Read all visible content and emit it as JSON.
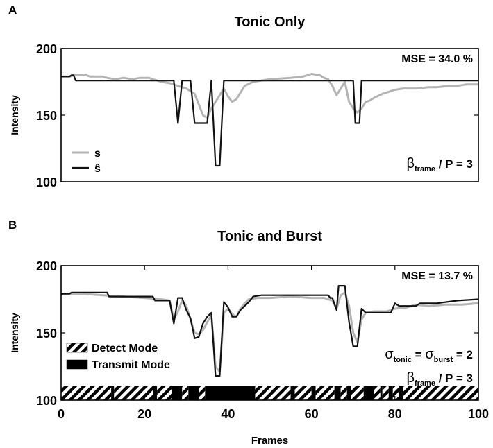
{
  "xlabel": "Frames",
  "colors": {
    "s": "#b4b4b4",
    "s_hat": "#111111",
    "axis": "#000000"
  },
  "chart_data": [
    {
      "panel_label": "A",
      "title": "Tonic Only",
      "type": "line",
      "ylabel": "Intensity",
      "xlabel": "",
      "xlim": [
        0,
        100
      ],
      "ylim": [
        100,
        200
      ],
      "yticks": [
        100,
        150,
        200
      ],
      "xticks_visible": false,
      "annotation_mse": "MSE = 34.0 %",
      "annotation_lines": [
        {
          "sym": "β",
          "sub": "frame",
          "rest": " / P = 3"
        }
      ],
      "legend": [
        {
          "label": "s",
          "color": "#b4b4b4"
        },
        {
          "label": "ŝ",
          "color": "#111111"
        }
      ],
      "series": [
        {
          "name": "s",
          "color": "#b4b4b4",
          "points": [
            [
              0,
              179
            ],
            [
              2,
              179
            ],
            [
              3,
              180
            ],
            [
              6,
              180
            ],
            [
              7,
              179
            ],
            [
              10,
              179
            ],
            [
              11,
              178
            ],
            [
              13,
              177
            ],
            [
              15,
              178
            ],
            [
              17,
              177
            ],
            [
              19,
              178
            ],
            [
              21,
              178
            ],
            [
              22,
              177
            ],
            [
              24,
              175
            ],
            [
              26,
              174
            ],
            [
              27,
              173
            ],
            [
              28,
              172
            ],
            [
              29,
              171
            ],
            [
              30,
              170
            ],
            [
              31,
              168
            ],
            [
              32,
              166
            ],
            [
              33,
              158
            ],
            [
              34,
              150
            ],
            [
              35,
              148
            ],
            [
              36,
              155
            ],
            [
              37,
              160
            ],
            [
              38,
              165
            ],
            [
              39,
              170
            ],
            [
              40,
              164
            ],
            [
              41,
              160
            ],
            [
              42,
              162
            ],
            [
              43,
              167
            ],
            [
              44,
              172
            ],
            [
              46,
              175
            ],
            [
              48,
              176
            ],
            [
              50,
              177
            ],
            [
              55,
              178
            ],
            [
              58,
              179
            ],
            [
              60,
              181
            ],
            [
              62,
              180
            ],
            [
              63,
              178
            ],
            [
              64,
              177
            ],
            [
              65,
              172
            ],
            [
              66,
              165
            ],
            [
              67,
              170
            ],
            [
              68,
              175
            ],
            [
              69,
              160
            ],
            [
              70,
              155
            ],
            [
              71,
              152
            ],
            [
              72,
              155
            ],
            [
              73,
              160
            ],
            [
              74,
              161
            ],
            [
              75,
              163
            ],
            [
              77,
              166
            ],
            [
              79,
              168
            ],
            [
              80,
              169
            ],
            [
              82,
              170
            ],
            [
              85,
              170
            ],
            [
              88,
              171
            ],
            [
              90,
              171
            ],
            [
              93,
              172
            ],
            [
              95,
              172
            ],
            [
              97,
              173
            ],
            [
              100,
              173
            ]
          ]
        },
        {
          "name": "ŝ",
          "color": "#111111",
          "points": [
            [
              0,
              179
            ],
            [
              2,
              179
            ],
            [
              2.5,
              180
            ],
            [
              3,
              180
            ],
            [
              3.5,
              176
            ],
            [
              26,
              176
            ],
            [
              27,
              176
            ],
            [
              28,
              144
            ],
            [
              29,
              176
            ],
            [
              31,
              176
            ],
            [
              32,
              144
            ],
            [
              35,
              144
            ],
            [
              36,
              176
            ],
            [
              37,
              112
            ],
            [
              38,
              112
            ],
            [
              39,
              176
            ],
            [
              70,
              176
            ],
            [
              70.5,
              144
            ],
            [
              71.5,
              144
            ],
            [
              72,
              176
            ],
            [
              100,
              176
            ]
          ]
        }
      ],
      "bands": []
    },
    {
      "panel_label": "B",
      "title": "Tonic and Burst",
      "type": "line",
      "ylabel": "Intensity",
      "xlabel": "Frames",
      "xlim": [
        0,
        100
      ],
      "ylim": [
        100,
        200
      ],
      "yticks": [
        100,
        150,
        200
      ],
      "xticks": [
        0,
        20,
        40,
        60,
        80,
        100
      ],
      "xticks_visible": true,
      "annotation_mse": "MSE = 13.7 %",
      "annotation_lines": [
        {
          "sym": "σ",
          "sub": "tonic",
          "mid": " = ",
          "sym2": "σ",
          "sub2": "burst",
          "rest": " = 2"
        },
        {
          "sym": "β",
          "sub": "frame",
          "rest": " / P = 3"
        }
      ],
      "legend": [
        {
          "label": "Detect Mode",
          "style": "hatched"
        },
        {
          "label": "Transmit Mode",
          "style": "solid"
        }
      ],
      "series": [
        {
          "name": "s",
          "color": "#b4b4b4",
          "points": [
            [
              0,
              179
            ],
            [
              5,
              179
            ],
            [
              10,
              178
            ],
            [
              15,
              177
            ],
            [
              20,
              176
            ],
            [
              24,
              175
            ],
            [
              26,
              174
            ],
            [
              27,
              160
            ],
            [
              28,
              166
            ],
            [
              29,
              174
            ],
            [
              30,
              170
            ],
            [
              31,
              160
            ],
            [
              32,
              150
            ],
            [
              33,
              149
            ],
            [
              34,
              152
            ],
            [
              35,
              158
            ],
            [
              36,
              163
            ],
            [
              37,
              125
            ],
            [
              38,
              121
            ],
            [
              39,
              165
            ],
            [
              40,
              168
            ],
            [
              41,
              164
            ],
            [
              42,
              162
            ],
            [
              43,
              168
            ],
            [
              44,
              172
            ],
            [
              45,
              175
            ],
            [
              47,
              176
            ],
            [
              50,
              176
            ],
            [
              55,
              177
            ],
            [
              60,
              176
            ],
            [
              63,
              176
            ],
            [
              65,
              174
            ],
            [
              66,
              168
            ],
            [
              67,
              178
            ],
            [
              68,
              180
            ],
            [
              69,
              170
            ],
            [
              70,
              150
            ],
            [
              71,
              143
            ],
            [
              72,
              160
            ],
            [
              73,
              165
            ],
            [
              75,
              166
            ],
            [
              78,
              166
            ],
            [
              80,
              168
            ],
            [
              83,
              169
            ],
            [
              85,
              171
            ],
            [
              88,
              170
            ],
            [
              92,
              171
            ],
            [
              96,
              171
            ],
            [
              100,
              172
            ]
          ]
        },
        {
          "name": "ŝ",
          "color": "#111111",
          "points": [
            [
              0,
              179
            ],
            [
              2,
              179
            ],
            [
              2.5,
              180
            ],
            [
              6,
              180
            ],
            [
              11,
              180
            ],
            [
              11.5,
              177
            ],
            [
              22,
              177
            ],
            [
              22.5,
              174
            ],
            [
              26,
              174
            ],
            [
              27,
              157
            ],
            [
              28,
              176
            ],
            [
              29,
              176
            ],
            [
              30,
              167
            ],
            [
              31,
              161
            ],
            [
              32,
              146
            ],
            [
              33,
              147
            ],
            [
              34,
              157
            ],
            [
              35,
              162
            ],
            [
              36,
              165
            ],
            [
              37,
              118
            ],
            [
              38,
              118
            ],
            [
              39,
              173
            ],
            [
              40,
              169
            ],
            [
              41,
              162
            ],
            [
              42,
              162
            ],
            [
              43,
              167
            ],
            [
              44,
              170
            ],
            [
              45,
              173
            ],
            [
              46,
              177
            ],
            [
              48,
              178
            ],
            [
              60,
              178
            ],
            [
              64,
              178
            ],
            [
              64.5,
              176
            ],
            [
              65,
              176
            ],
            [
              66,
              167
            ],
            [
              66.5,
              185
            ],
            [
              68,
              185
            ],
            [
              69,
              158
            ],
            [
              70,
              140
            ],
            [
              71,
              140
            ],
            [
              72,
              168
            ],
            [
              73,
              165
            ],
            [
              79,
              165
            ],
            [
              80,
              172
            ],
            [
              81,
              170
            ],
            [
              82,
              170
            ],
            [
              85,
              170
            ],
            [
              86,
              172
            ],
            [
              90,
              172
            ],
            [
              95,
              174
            ],
            [
              100,
              175
            ]
          ]
        }
      ],
      "bands": [
        {
          "start": 0,
          "end": 12,
          "mode": "Detect Mode"
        },
        {
          "start": 12,
          "end": 12.7,
          "mode": "Transmit Mode"
        },
        {
          "start": 12.7,
          "end": 22,
          "mode": "Detect Mode"
        },
        {
          "start": 22,
          "end": 23,
          "mode": "Transmit Mode"
        },
        {
          "start": 23,
          "end": 26.5,
          "mode": "Detect Mode"
        },
        {
          "start": 26.5,
          "end": 29,
          "mode": "Transmit Mode"
        },
        {
          "start": 29,
          "end": 30.5,
          "mode": "Detect Mode"
        },
        {
          "start": 30.5,
          "end": 33,
          "mode": "Transmit Mode"
        },
        {
          "start": 33,
          "end": 34.5,
          "mode": "Detect Mode"
        },
        {
          "start": 34.5,
          "end": 46.5,
          "mode": "Transmit Mode"
        },
        {
          "start": 46.5,
          "end": 55,
          "mode": "Detect Mode"
        },
        {
          "start": 55,
          "end": 56,
          "mode": "Transmit Mode"
        },
        {
          "start": 56,
          "end": 60,
          "mode": "Detect Mode"
        },
        {
          "start": 60,
          "end": 61,
          "mode": "Transmit Mode"
        },
        {
          "start": 61,
          "end": 65.5,
          "mode": "Detect Mode"
        },
        {
          "start": 65.5,
          "end": 67,
          "mode": "Transmit Mode"
        },
        {
          "start": 67,
          "end": 68.5,
          "mode": "Detect Mode"
        },
        {
          "start": 68.5,
          "end": 69.5,
          "mode": "Transmit Mode"
        },
        {
          "start": 69.5,
          "end": 72.5,
          "mode": "Detect Mode"
        },
        {
          "start": 72.5,
          "end": 75,
          "mode": "Transmit Mode"
        },
        {
          "start": 75,
          "end": 76.5,
          "mode": "Detect Mode"
        },
        {
          "start": 76.5,
          "end": 77,
          "mode": "Transmit Mode"
        },
        {
          "start": 77,
          "end": 78.5,
          "mode": "Detect Mode"
        },
        {
          "start": 78.5,
          "end": 79.5,
          "mode": "Transmit Mode"
        },
        {
          "start": 79.5,
          "end": 81,
          "mode": "Detect Mode"
        },
        {
          "start": 81,
          "end": 82,
          "mode": "Transmit Mode"
        },
        {
          "start": 82,
          "end": 100,
          "mode": "Detect Mode"
        }
      ]
    }
  ]
}
